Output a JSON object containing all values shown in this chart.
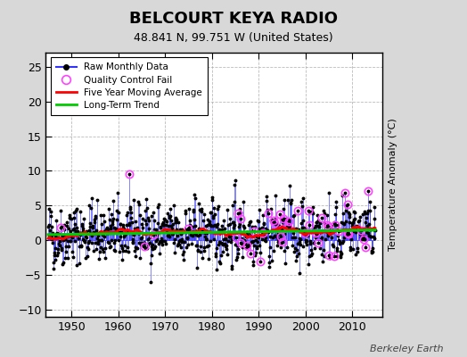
{
  "title": "BELCOURT KEYA RADIO",
  "subtitle": "48.841 N, 99.751 W (United States)",
  "ylabel": "Temperature Anomaly (°C)",
  "watermark": "Berkeley Earth",
  "xlim": [
    1944.5,
    2016.5
  ],
  "ylim": [
    -11,
    27
  ],
  "yticks": [
    -10,
    -5,
    0,
    5,
    10,
    15,
    20,
    25
  ],
  "xticks": [
    1950,
    1960,
    1970,
    1980,
    1990,
    2000,
    2010
  ],
  "background_color": "#d8d8d8",
  "plot_bg_color": "#ffffff",
  "raw_line_color": "#3333ff",
  "raw_marker_color": "#000000",
  "qc_fail_color": "#ff44ff",
  "moving_avg_color": "#ff0000",
  "trend_color": "#00cc00",
  "seed": 42,
  "years_start": 1945,
  "years_end": 2014
}
